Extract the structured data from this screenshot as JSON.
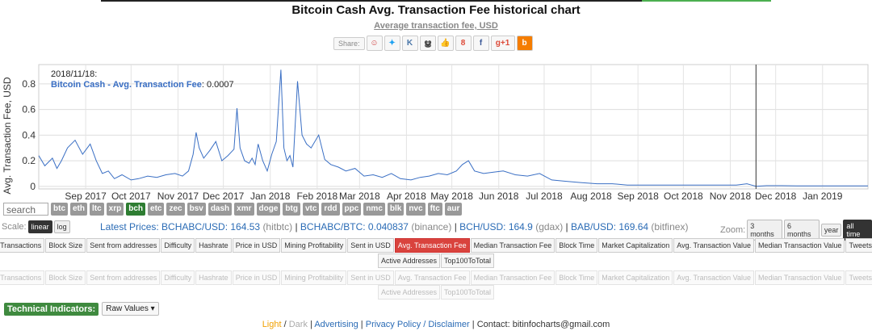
{
  "page": {
    "title": "Bitcoin Cash Avg. Transaction Fee historical chart",
    "subtitle": "Average transaction fee, USD",
    "share_label": "Share:",
    "share_icons": [
      "weibo-icon",
      "twitter-icon",
      "vk-icon",
      "weibo2-icon",
      "like-icon",
      "google-plus-icon",
      "facebook-icon",
      "google-plus-one-icon",
      "blogger-icon"
    ]
  },
  "chart_data": {
    "type": "line",
    "title": "",
    "ylabel": "Avg. Transaction Fee, USD",
    "ylim": [
      -0.02,
      0.95
    ],
    "yticks": [
      "0.8",
      "0.6",
      "0.4",
      "0.2",
      "0"
    ],
    "ytick_values": [
      0.8,
      0.6,
      0.4,
      0.2,
      0
    ],
    "xlim": [
      "2017-08-01",
      "2019-01-31"
    ],
    "xticks": [
      "Sep 2017",
      "Oct 2017",
      "Nov 2017",
      "Dec 2017",
      "Jan 2018",
      "Feb 2018",
      "Mar 2018",
      "Apr 2018",
      "May 2018",
      "Jun 2018",
      "Jul 2018",
      "Aug 2018",
      "Sep 2018",
      "Oct 2018",
      "Nov 2018",
      "Dec 2018",
      "Jan 2019"
    ],
    "xtick_dates": [
      "2017-09-01",
      "2017-10-01",
      "2017-11-01",
      "2017-12-01",
      "2018-01-01",
      "2018-02-01",
      "2018-03-01",
      "2018-04-01",
      "2018-05-01",
      "2018-06-01",
      "2018-07-01",
      "2018-08-01",
      "2018-09-01",
      "2018-10-01",
      "2018-11-01",
      "2018-12-01",
      "2019-01-01"
    ],
    "grid": true,
    "color": "#3a6fc4",
    "tooltip": {
      "date": "2018/11/18:",
      "series": "Bitcoin Cash - Avg. Transaction Fee",
      "value": "0.0007"
    },
    "crosshair_date": "2018-11-18",
    "series": [
      {
        "name": "Bitcoin Cash - Avg. Transaction Fee",
        "x": [
          "2017-08-01",
          "2017-08-05",
          "2017-08-10",
          "2017-08-13",
          "2017-08-16",
          "2017-08-20",
          "2017-08-25",
          "2017-08-30",
          "2017-09-04",
          "2017-09-08",
          "2017-09-12",
          "2017-09-16",
          "2017-09-20",
          "2017-09-25",
          "2017-10-01",
          "2017-10-06",
          "2017-10-12",
          "2017-10-18",
          "2017-10-24",
          "2017-10-30",
          "2017-11-04",
          "2017-11-08",
          "2017-11-11",
          "2017-11-13",
          "2017-11-15",
          "2017-11-18",
          "2017-11-22",
          "2017-11-26",
          "2017-11-30",
          "2017-12-04",
          "2017-12-08",
          "2017-12-10",
          "2017-12-12",
          "2017-12-15",
          "2017-12-18",
          "2017-12-20",
          "2017-12-22",
          "2017-12-24",
          "2017-12-27",
          "2017-12-30",
          "2018-01-02",
          "2018-01-05",
          "2018-01-08",
          "2018-01-10",
          "2018-01-12",
          "2018-01-14",
          "2018-01-16",
          "2018-01-19",
          "2018-01-22",
          "2018-01-25",
          "2018-01-28",
          "2018-02-02",
          "2018-02-06",
          "2018-02-10",
          "2018-02-15",
          "2018-02-20",
          "2018-02-26",
          "2018-03-04",
          "2018-03-10",
          "2018-03-16",
          "2018-03-22",
          "2018-03-28",
          "2018-04-04",
          "2018-04-10",
          "2018-04-16",
          "2018-04-22",
          "2018-04-28",
          "2018-05-04",
          "2018-05-08",
          "2018-05-12",
          "2018-05-16",
          "2018-05-22",
          "2018-05-28",
          "2018-06-04",
          "2018-06-12",
          "2018-06-20",
          "2018-06-28",
          "2018-07-06",
          "2018-07-15",
          "2018-07-25",
          "2018-08-05",
          "2018-08-15",
          "2018-08-25",
          "2018-09-05",
          "2018-09-15",
          "2018-09-25",
          "2018-10-05",
          "2018-10-15",
          "2018-10-25",
          "2018-11-05",
          "2018-11-12",
          "2018-11-15",
          "2018-11-18",
          "2018-11-25",
          "2018-12-05",
          "2018-12-15",
          "2018-12-25",
          "2019-01-05",
          "2019-01-15",
          "2019-01-25",
          "2019-01-31"
        ],
        "y": [
          0.24,
          0.16,
          0.22,
          0.14,
          0.2,
          0.3,
          0.36,
          0.25,
          0.33,
          0.2,
          0.1,
          0.12,
          0.06,
          0.09,
          0.05,
          0.06,
          0.08,
          0.07,
          0.09,
          0.1,
          0.08,
          0.12,
          0.25,
          0.42,
          0.3,
          0.22,
          0.28,
          0.35,
          0.2,
          0.24,
          0.29,
          0.61,
          0.3,
          0.2,
          0.18,
          0.22,
          0.17,
          0.33,
          0.2,
          0.12,
          0.25,
          0.35,
          0.91,
          0.3,
          0.2,
          0.24,
          0.15,
          0.82,
          0.4,
          0.33,
          0.3,
          0.4,
          0.21,
          0.17,
          0.15,
          0.12,
          0.14,
          0.08,
          0.09,
          0.07,
          0.1,
          0.06,
          0.05,
          0.07,
          0.08,
          0.1,
          0.09,
          0.12,
          0.17,
          0.2,
          0.12,
          0.1,
          0.11,
          0.12,
          0.09,
          0.08,
          0.1,
          0.05,
          0.04,
          0.03,
          0.02,
          0.02,
          0.01,
          0.01,
          0.01,
          0.01,
          0.01,
          0.01,
          0.01,
          0.01,
          0.02,
          0.01,
          0.0007,
          0.005,
          0.005,
          0.004,
          0.004,
          0.004,
          0.003,
          0.003,
          0.003
        ]
      }
    ]
  },
  "tickers": {
    "search_placeholder": "search",
    "items": [
      "btc",
      "eth",
      "ltc",
      "xrp",
      "bch",
      "etc",
      "zec",
      "bsv",
      "dash",
      "xmr",
      "doge",
      "btg",
      "vtc",
      "rdd",
      "ppc",
      "nmc",
      "blk",
      "nvc",
      "ftc",
      "aur"
    ],
    "active": "bch"
  },
  "scale": {
    "label": "Scale:",
    "linear": "linear",
    "log": "log"
  },
  "prices": {
    "prefix": "Latest Prices: ",
    "items": [
      {
        "pair": "BCHABC/USD: 164.53",
        "src": "(hitbtc)"
      },
      {
        "pair": "BCHABC/BTC: 0.040837",
        "src": "(binance)"
      },
      {
        "pair": "BCH/USD: 164.9",
        "src": "(gdax)"
      },
      {
        "pair": "BAB/USD: 169.64",
        "src": "(bitfinex)"
      }
    ]
  },
  "zoom": {
    "label": "Zoom:",
    "options": [
      "3 months",
      "6 months",
      "year",
      "all time"
    ],
    "active": "all time"
  },
  "metrics_row1": [
    "Transactions",
    "Block Size",
    "Sent from addresses",
    "Difficulty",
    "Hashrate",
    "Price in USD",
    "Mining Profitability",
    "Sent in USD",
    "Avg. Transaction Fee",
    "Median Transaction Fee",
    "Block Time",
    "Market Capitalization",
    "Avg. Transaction Value",
    "Median Transaction Value",
    "Tweets"
  ],
  "metrics_row2": [
    "Active Addresses",
    "Top100ToTotal"
  ],
  "metrics_active": "Avg. Transaction Fee",
  "tech": {
    "label": "Technical Indicators:",
    "select": "Raw Values ▾"
  },
  "footer": {
    "light": "Light",
    "slash": " / ",
    "dark": "Dark",
    "advertising": "Advertising",
    "privacy": "Privacy Policy / Disclaimer",
    "contact": "Contact: bitinfocharts@gmail.com"
  }
}
